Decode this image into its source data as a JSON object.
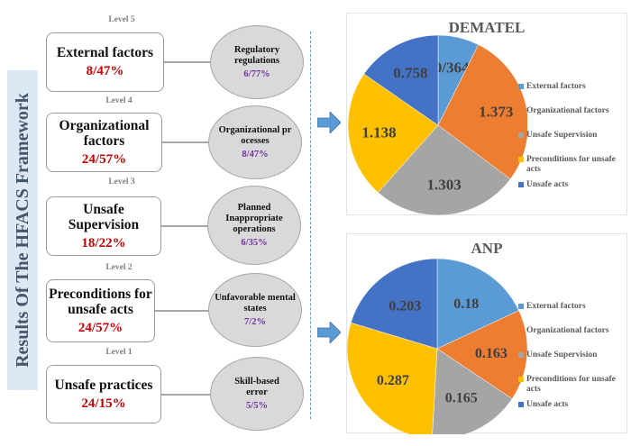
{
  "side_title": "Results Of The HFACS Framework",
  "levels": [
    {
      "label": "Level 5",
      "factor": "External factors",
      "factor_value": "8/47%",
      "sub": "Regulatory regulations",
      "sub_value": "6/77%"
    },
    {
      "label": "Level 4",
      "factor": "Organizational factors",
      "factor_value": "24/57%",
      "sub": "Organizational processes",
      "sub_value": "8/47%"
    },
    {
      "label": "Level 3",
      "factor": "Unsafe Supervision",
      "factor_value": "18/22%",
      "sub": "Planned Inappropriate operations",
      "sub_value": "6/35%"
    },
    {
      "label": "Level 2",
      "factor": "Preconditions for unsafe acts",
      "factor_value": "24/57%",
      "sub": "Unfavorable mental states",
      "sub_value": "7/2%"
    },
    {
      "label": "Level 1",
      "factor": "Unsafe practices",
      "factor_value": "24/15%",
      "sub": "Skill-based error",
      "sub_value": "5/5%"
    }
  ],
  "colors": {
    "external": "#5b9bd5",
    "organizational": "#ed7d31",
    "supervision": "#a5a5a5",
    "preconditions": "#ffc000",
    "unsafe_acts": "#4472c4",
    "factor_value": "#c00000",
    "sub_value": "#7030a0"
  },
  "chart_data": [
    {
      "type": "pie",
      "title": "DEMATEL",
      "categories": [
        "External factors",
        "Organizational factors",
        "Unsafe Supervision",
        "Preconditions for unsafe acts",
        "Unsafe acts"
      ],
      "values": [
        0.364,
        1.373,
        1.303,
        1.138,
        0.758
      ],
      "data_labels": [
        "0/364",
        "1.373",
        "1.303",
        "1.138",
        "0.758"
      ],
      "legend": "right"
    },
    {
      "type": "pie",
      "title": "ANP",
      "categories": [
        "External factors",
        "Organizational factors",
        "Unsafe Supervision",
        "Preconditions for unsafe acts",
        "Unsafe acts"
      ],
      "values": [
        0.18,
        0.163,
        0.165,
        0.287,
        0.203
      ],
      "data_labels": [
        "0.18",
        "0.163",
        "0.165",
        "0.287",
        "0.203"
      ],
      "legend": "right"
    }
  ]
}
